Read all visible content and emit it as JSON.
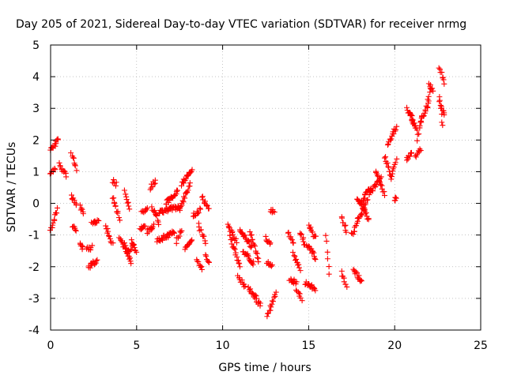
{
  "chart_data": {
    "type": "scatter",
    "title": "Day 205 of 2021, Sidereal Day-to-day VTEC variation (SDTVAR) for receiver nrmg",
    "xlabel": "GPS time / hours",
    "ylabel": "SDTVAR / TECUs",
    "xlim": [
      0,
      25
    ],
    "ylim": [
      -4,
      5
    ],
    "xticks": [
      0,
      5,
      10,
      15,
      20,
      25
    ],
    "yticks": [
      -4,
      -3,
      -2,
      -1,
      0,
      1,
      2,
      3,
      4,
      5
    ],
    "grid": true,
    "marker": "plus",
    "color": "#ff0000",
    "series": [
      {
        "name": "SDTVAR",
        "segments": [
          {
            "x0": 0.0,
            "x1": 0.45,
            "y0": 1.7,
            "y1": 2.0
          },
          {
            "x0": 0.0,
            "x1": 0.25,
            "y0": 0.9,
            "y1": 1.1
          },
          {
            "x0": 0.0,
            "x1": 0.4,
            "y0": -0.9,
            "y1": -0.2
          },
          {
            "x0": 0.5,
            "x1": 0.9,
            "y0": 1.25,
            "y1": 0.9
          },
          {
            "x0": 1.2,
            "x1": 1.5,
            "y0": 1.6,
            "y1": 1.1
          },
          {
            "x0": 1.2,
            "x1": 1.5,
            "y0": 0.2,
            "y1": 0.0
          },
          {
            "x0": 1.3,
            "x1": 1.5,
            "y0": -0.7,
            "y1": -0.9
          },
          {
            "x0": 1.7,
            "x1": 1.9,
            "y0": -1.3,
            "y1": -1.4
          },
          {
            "x0": 1.7,
            "x1": 1.9,
            "y0": -0.1,
            "y1": -0.3
          },
          {
            "x0": 2.1,
            "x1": 2.4,
            "y0": -1.4,
            "y1": -1.4
          },
          {
            "x0": 2.2,
            "x1": 2.7,
            "y0": -2.0,
            "y1": -1.8
          },
          {
            "x0": 2.4,
            "x1": 2.8,
            "y0": -0.6,
            "y1": -0.55
          },
          {
            "x0": 3.2,
            "x1": 3.6,
            "y0": -0.7,
            "y1": -1.3
          },
          {
            "x0": 3.6,
            "x1": 3.8,
            "y0": 0.7,
            "y1": 0.6
          },
          {
            "x0": 3.6,
            "x1": 4.0,
            "y0": 0.2,
            "y1": -0.5
          },
          {
            "x0": 4.0,
            "x1": 4.4,
            "y0": -1.1,
            "y1": -1.5
          },
          {
            "x0": 4.3,
            "x1": 4.7,
            "y0": -1.3,
            "y1": -1.9
          },
          {
            "x0": 4.3,
            "x1": 4.6,
            "y0": 0.4,
            "y1": -0.2
          },
          {
            "x0": 4.4,
            "x1": 4.8,
            "y0": -1.6,
            "y1": -1.3
          },
          {
            "x0": 4.7,
            "x1": 5.0,
            "y0": -1.2,
            "y1": -1.6
          },
          {
            "x0": 5.2,
            "x1": 5.5,
            "y0": -0.8,
            "y1": -0.7
          },
          {
            "x0": 5.3,
            "x1": 5.6,
            "y0": -0.3,
            "y1": -0.2
          },
          {
            "x0": 5.8,
            "x1": 6.1,
            "y0": 0.5,
            "y1": 0.7
          },
          {
            "x0": 5.6,
            "x1": 6.0,
            "y0": -0.9,
            "y1": -0.7
          },
          {
            "x0": 5.9,
            "x1": 6.3,
            "y0": -0.1,
            "y1": -0.6
          },
          {
            "x0": 6.2,
            "x1": 7.2,
            "y0": -1.2,
            "y1": -0.9
          },
          {
            "x0": 6.3,
            "x1": 7.5,
            "y0": -0.3,
            "y1": -0.1
          },
          {
            "x0": 6.7,
            "x1": 7.4,
            "y0": 0.0,
            "y1": 0.4
          },
          {
            "x0": 7.3,
            "x1": 7.6,
            "y0": -1.2,
            "y1": -0.8
          },
          {
            "x0": 7.5,
            "x1": 8.1,
            "y0": -0.2,
            "y1": 0.6
          },
          {
            "x0": 7.6,
            "x1": 8.2,
            "y0": 0.6,
            "y1": 1.1
          },
          {
            "x0": 7.8,
            "x1": 8.2,
            "y0": -1.4,
            "y1": -1.2
          },
          {
            "x0": 8.3,
            "x1": 8.7,
            "y0": -0.4,
            "y1": -0.2
          },
          {
            "x0": 8.5,
            "x1": 8.8,
            "y0": -1.8,
            "y1": -2.1
          },
          {
            "x0": 8.6,
            "x1": 9.0,
            "y0": -0.7,
            "y1": -1.2
          },
          {
            "x0": 8.8,
            "x1": 9.2,
            "y0": 0.2,
            "y1": -0.2
          },
          {
            "x0": 9.0,
            "x1": 9.2,
            "y0": -1.6,
            "y1": -1.9
          },
          {
            "x0": 10.3,
            "x1": 10.8,
            "y0": -0.7,
            "y1": -1.2
          },
          {
            "x0": 10.4,
            "x1": 11.0,
            "y0": -1.0,
            "y1": -2.0
          },
          {
            "x0": 10.9,
            "x1": 11.3,
            "y0": -2.3,
            "y1": -2.6
          },
          {
            "x0": 11.0,
            "x1": 11.7,
            "y0": -0.8,
            "y1": -1.4
          },
          {
            "x0": 11.2,
            "x1": 11.8,
            "y0": -1.5,
            "y1": -1.9
          },
          {
            "x0": 11.5,
            "x1": 12.0,
            "y0": -2.7,
            "y1": -3.0
          },
          {
            "x0": 11.6,
            "x1": 12.1,
            "y0": -0.9,
            "y1": -1.8
          },
          {
            "x0": 12.0,
            "x1": 12.2,
            "y0": -3.1,
            "y1": -3.2
          },
          {
            "x0": 12.5,
            "x1": 12.8,
            "y0": -1.1,
            "y1": -1.3
          },
          {
            "x0": 12.6,
            "x1": 12.9,
            "y0": -1.9,
            "y1": -2.0
          },
          {
            "x0": 12.6,
            "x1": 13.1,
            "y0": -3.6,
            "y1": -2.8
          },
          {
            "x0": 12.8,
            "x1": 13.0,
            "y0": -0.2,
            "y1": -0.3
          },
          {
            "x0": 13.8,
            "x1": 14.1,
            "y0": -0.9,
            "y1": -1.3
          },
          {
            "x0": 13.9,
            "x1": 14.3,
            "y0": -2.4,
            "y1": -2.5
          },
          {
            "x0": 14.1,
            "x1": 14.5,
            "y0": -1.6,
            "y1": -2.1
          },
          {
            "x0": 14.3,
            "x1": 14.6,
            "y0": -2.7,
            "y1": -3.0
          },
          {
            "x0": 14.5,
            "x1": 14.8,
            "y0": -0.9,
            "y1": -1.3
          },
          {
            "x0": 14.8,
            "x1": 15.4,
            "y0": -2.5,
            "y1": -2.7
          },
          {
            "x0": 14.9,
            "x1": 15.4,
            "y0": -1.3,
            "y1": -1.7
          },
          {
            "x0": 15.0,
            "x1": 15.4,
            "y0": -0.7,
            "y1": -1.1
          },
          {
            "x0": 16.0,
            "x1": 16.2,
            "y0": -1.0,
            "y1": -2.3
          },
          {
            "x0": 16.9,
            "x1": 17.2,
            "y0": -0.4,
            "y1": -0.9
          },
          {
            "x0": 16.9,
            "x1": 17.2,
            "y0": -2.2,
            "y1": -2.6
          },
          {
            "x0": 17.5,
            "x1": 18.4,
            "y0": -1.0,
            "y1": 0.1
          },
          {
            "x0": 17.6,
            "x1": 18.1,
            "y0": -2.1,
            "y1": -2.5
          },
          {
            "x0": 17.8,
            "x1": 18.5,
            "y0": 0.2,
            "y1": -0.5
          },
          {
            "x0": 18.0,
            "x1": 18.6,
            "y0": 0.0,
            "y1": 0.5
          },
          {
            "x0": 18.5,
            "x1": 19.2,
            "y0": 0.3,
            "y1": 0.8
          },
          {
            "x0": 18.9,
            "x1": 19.4,
            "y0": 1.0,
            "y1": 0.3
          },
          {
            "x0": 19.4,
            "x1": 19.8,
            "y0": 1.5,
            "y1": 0.8
          },
          {
            "x0": 19.6,
            "x1": 20.1,
            "y0": 1.9,
            "y1": 2.4
          },
          {
            "x0": 19.8,
            "x1": 20.1,
            "y0": 0.9,
            "y1": 1.4
          },
          {
            "x0": 20.0,
            "x1": 20.1,
            "y0": 0.1,
            "y1": 0.2
          },
          {
            "x0": 20.7,
            "x1": 21.0,
            "y0": 1.4,
            "y1": 1.6
          },
          {
            "x0": 20.7,
            "x1": 21.2,
            "y0": 3.0,
            "y1": 2.5
          },
          {
            "x0": 20.9,
            "x1": 21.3,
            "y0": 2.8,
            "y1": 2.3
          },
          {
            "x0": 21.2,
            "x1": 21.5,
            "y0": 1.5,
            "y1": 1.7
          },
          {
            "x0": 21.3,
            "x1": 21.6,
            "y0": 2.0,
            "y1": 2.8
          },
          {
            "x0": 21.5,
            "x1": 22.0,
            "y0": 2.6,
            "y1": 3.2
          },
          {
            "x0": 21.9,
            "x1": 22.1,
            "y0": 3.1,
            "y1": 3.7
          },
          {
            "x0": 22.0,
            "x1": 22.2,
            "y0": 3.8,
            "y1": 3.5
          },
          {
            "x0": 22.6,
            "x1": 22.9,
            "y0": 4.3,
            "y1": 3.8
          },
          {
            "x0": 22.6,
            "x1": 22.8,
            "y0": 3.4,
            "y1": 2.4
          },
          {
            "x0": 22.6,
            "x1": 22.9,
            "y0": 3.2,
            "y1": 2.8
          }
        ]
      }
    ]
  }
}
